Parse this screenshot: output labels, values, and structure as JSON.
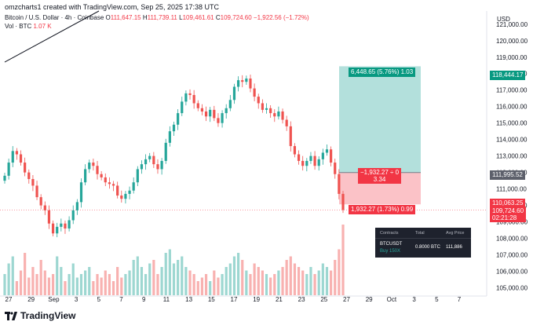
{
  "header": {
    "author_line": "omzcharts1 created with TradingView.com, Sep 25, 2025 17:38 UTC",
    "symbol": "Bitcoin / U.S. Dollar · 4h · Coinbase",
    "open_label": "O",
    "open": "111,647.15",
    "high_label": "H",
    "high": "111,739.11",
    "low_label": "L",
    "low": "109,461.61",
    "close_label": "C",
    "close": "109,724.60",
    "change": "−1,922.56 (−1.72%)",
    "vol_label": "Vol · BTC",
    "vol": "1.07 K"
  },
  "currency": "USD",
  "brand": "TradingView",
  "tags": {
    "target_price": "118,444.17",
    "entry_price": "111,995.52",
    "stop_price": "110,063.25",
    "last_price": "109,724.60",
    "countdown": "02:21:28",
    "profit_label": "6,448.65 (5.76%) 1.03",
    "open_pnl_label_1": "−1,932.27 ÷ 0",
    "open_pnl_label_2": "3.34",
    "loss_label": "1,932.27 (1.73%) 0.99"
  },
  "position_panel": {
    "headers": [
      "Contracts",
      "Total",
      "Avg Price"
    ],
    "symbol": "BTCUSDT",
    "side": "Buy 150X",
    "total": "0.8000 BTC",
    "avg_price": "111,886"
  },
  "colors": {
    "up": "#26a69a",
    "down": "#ef5350",
    "profit_zone": "#26a69a",
    "loss_zone": "#f23645",
    "target_tag": "#089981",
    "entry_tag": "#5d606b",
    "last_tag": "#f23645"
  },
  "chart_data": {
    "type": "candlestick",
    "title": "Bitcoin / U.S. Dollar · 4h · Coinbase",
    "y_axis_ticks": [
      "121,000.00",
      "120,000.00",
      "119,000.00",
      "118,000.00",
      "117,000.00",
      "116,000.00",
      "115,000.00",
      "114,000.00",
      "113,000.00",
      "112,000.00",
      "111,000.00",
      "110,000.00",
      "109,000.00",
      "108,000.00",
      "107,000.00",
      "106,000.00",
      "105,000.00"
    ],
    "ylim": [
      104500,
      121800
    ],
    "x_axis_ticks": [
      "27",
      "29",
      "Sep",
      "3",
      "5",
      "7",
      "9",
      "11",
      "13",
      "15",
      "17",
      "19",
      "21",
      "23",
      "25",
      "27",
      "29",
      "Oct",
      "3",
      "5",
      "7"
    ],
    "close_path": [
      111800,
      112600,
      113300,
      113100,
      112600,
      112000,
      111600,
      111200,
      110500,
      110000,
      109700,
      108900,
      108300,
      108700,
      108900,
      108600,
      109100,
      109700,
      110200,
      111400,
      112200,
      112600,
      112400,
      111900,
      111700,
      111400,
      111300,
      111200,
      110600,
      110400,
      110700,
      110900,
      111400,
      112200,
      112500,
      112800,
      113000,
      112500,
      112200,
      112700,
      113800,
      114500,
      114900,
      115600,
      116300,
      116800,
      116700,
      116200,
      115900,
      115700,
      115400,
      115800,
      115300,
      115000,
      115600,
      115900,
      116400,
      117200,
      117600,
      117500,
      117700,
      117100,
      116600,
      116200,
      115800,
      115900,
      115600,
      115400,
      115700,
      115200,
      114800,
      113600,
      113100,
      112700,
      112400,
      112700,
      113000,
      112400,
      112800,
      113200,
      113400,
      112600,
      111900,
      110700,
      109724
    ],
    "volume_profile": [
      0.3,
      0.45,
      0.55,
      0.2,
      0.35,
      0.6,
      0.25,
      0.4,
      0.3,
      0.5,
      0.35,
      0.25,
      0.3,
      0.55,
      0.4,
      0.2,
      0.3,
      0.45,
      0.25,
      0.3,
      0.35,
      0.4,
      0.2,
      0.3,
      0.25,
      0.35,
      0.3,
      0.2,
      0.4,
      0.25,
      0.3,
      0.35,
      0.5,
      0.55,
      0.4,
      0.3,
      0.45,
      0.5,
      0.3,
      0.4,
      0.6,
      0.65,
      0.45,
      0.5,
      0.55,
      0.4,
      0.35,
      0.3,
      0.2,
      0.25,
      0.3,
      0.2,
      0.35,
      0.25,
      0.3,
      0.4,
      0.45,
      0.55,
      0.6,
      0.5,
      0.35,
      0.3,
      0.45,
      0.4,
      0.35,
      0.3,
      0.25,
      0.3,
      0.35,
      0.4,
      0.5,
      0.55,
      0.45,
      0.4,
      0.35,
      0.3,
      0.4,
      0.3,
      0.35,
      0.45,
      0.4,
      0.35,
      0.5,
      0.65,
      1.0
    ],
    "trend_line": {
      "from_price": 118700,
      "to_price": 121800
    },
    "position": {
      "entry": 111995.52,
      "target": 118444.17,
      "stop": 110063.25
    }
  }
}
